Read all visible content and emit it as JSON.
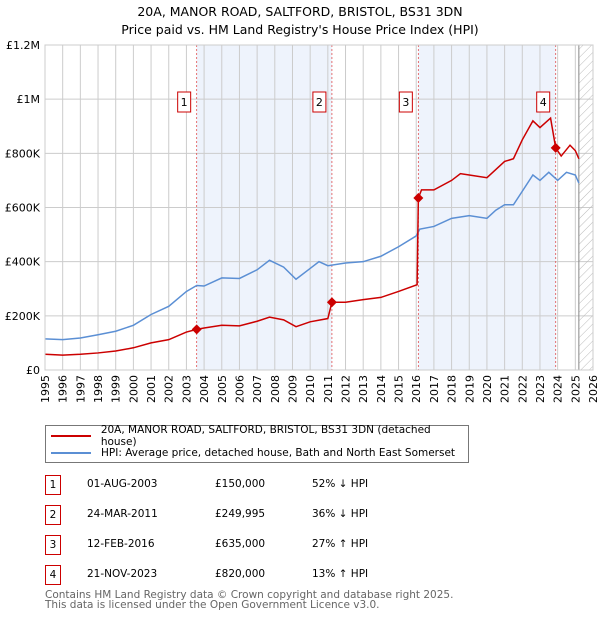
{
  "chart_data": {
    "type": "line",
    "title": "20A, MANOR ROAD, SALTFORD, BRISTOL, BS31 3DN",
    "subtitle": "Price paid vs. HM Land Registry's House Price Index (HPI)",
    "xlim": [
      1995,
      2026
    ],
    "ylim": [
      0,
      1200000
    ],
    "x_ticks": [
      "1995",
      "1996",
      "1997",
      "1998",
      "1999",
      "2000",
      "2001",
      "2002",
      "2003",
      "2004",
      "2005",
      "2006",
      "2007",
      "2008",
      "2009",
      "2010",
      "2011",
      "2012",
      "2013",
      "2014",
      "2015",
      "2016",
      "2017",
      "2018",
      "2019",
      "2020",
      "2021",
      "2022",
      "2023",
      "2024",
      "2025",
      "2026"
    ],
    "y_ticks": [
      {
        "v": 0,
        "label": "£0"
      },
      {
        "v": 200000,
        "label": "£200K"
      },
      {
        "v": 400000,
        "label": "£400K"
      },
      {
        "v": 600000,
        "label": "£600K"
      },
      {
        "v": 800000,
        "label": "£800K"
      },
      {
        "v": 1000000,
        "label": "£1M"
      },
      {
        "v": 1200000,
        "label": "£1.2M"
      }
    ],
    "grid": true,
    "forecast_hatch_from": 2025.2,
    "series": [
      {
        "name": "20A, MANOR ROAD, SALTFORD, BRISTOL, BS31 3DN (detached house)",
        "color": "#cc0000",
        "x": [
          1995,
          1996,
          1997,
          1998,
          1999,
          2000,
          2001,
          2002,
          2003,
          2003.58,
          2004,
          2005,
          2006,
          2007,
          2007.7,
          2008.5,
          2009.2,
          2010,
          2011,
          2011.23,
          2012,
          2013,
          2014,
          2015,
          2016.05,
          2016.12,
          2016.3,
          2017,
          2018,
          2018.5,
          2019,
          2020,
          2020.5,
          2021,
          2021.5,
          2022,
          2022.6,
          2023,
          2023.6,
          2023.89,
          2024.2,
          2024.7,
          2025,
          2025.2
        ],
        "y": [
          58000,
          55000,
          58000,
          63000,
          70000,
          82000,
          100000,
          112000,
          140000,
          150000,
          155000,
          165000,
          163000,
          180000,
          195000,
          185000,
          160000,
          178000,
          190000,
          249995,
          250000,
          260000,
          268000,
          290000,
          315000,
          635000,
          665000,
          665000,
          700000,
          725000,
          720000,
          710000,
          740000,
          770000,
          780000,
          850000,
          920000,
          895000,
          930000,
          820000,
          790000,
          830000,
          810000,
          780000
        ]
      },
      {
        "name": "HPI: Average price, detached house, Bath and North East Somerset",
        "color": "#5b8fd4",
        "x": [
          1995,
          1996,
          1997,
          1998,
          1999,
          2000,
          2001,
          2002,
          2003,
          2003.58,
          2004,
          2005,
          2006,
          2007,
          2007.7,
          2008.5,
          2009.2,
          2010,
          2010.5,
          2011,
          2012,
          2013,
          2014,
          2015,
          2016,
          2016.2,
          2017,
          2018,
          2019,
          2020,
          2020.5,
          2021,
          2021.5,
          2022,
          2022.6,
          2023,
          2023.5,
          2024,
          2024.5,
          2025,
          2025.2
        ],
        "y": [
          115000,
          112000,
          118000,
          130000,
          143000,
          165000,
          205000,
          235000,
          290000,
          312000,
          310000,
          340000,
          338000,
          370000,
          405000,
          380000,
          335000,
          375000,
          400000,
          385000,
          395000,
          400000,
          420000,
          455000,
          495000,
          520000,
          530000,
          560000,
          570000,
          560000,
          590000,
          610000,
          610000,
          660000,
          720000,
          700000,
          730000,
          700000,
          730000,
          720000,
          690000
        ]
      }
    ],
    "sales": [
      {
        "n": "1",
        "x": 2003.58,
        "date": "01-AUG-2003",
        "price": 150000,
        "price_label": "£150,000",
        "hpi": "52% ↓ HPI"
      },
      {
        "n": "2",
        "x": 2011.23,
        "date": "24-MAR-2011",
        "price": 249995,
        "price_label": "£249,995",
        "hpi": "36% ↓ HPI"
      },
      {
        "n": "3",
        "x": 2016.12,
        "date": "12-FEB-2016",
        "price": 635000,
        "price_label": "£635,000",
        "hpi": "27% ↑ HPI"
      },
      {
        "n": "4",
        "x": 2023.89,
        "date": "21-NOV-2023",
        "price": 820000,
        "price_label": "£820,000",
        "hpi": "13% ↑ HPI"
      }
    ]
  },
  "footer": {
    "line1": "Contains HM Land Registry data © Crown copyright and database right 2025.",
    "line2": "This data is licensed under the Open Government Licence v3.0."
  }
}
